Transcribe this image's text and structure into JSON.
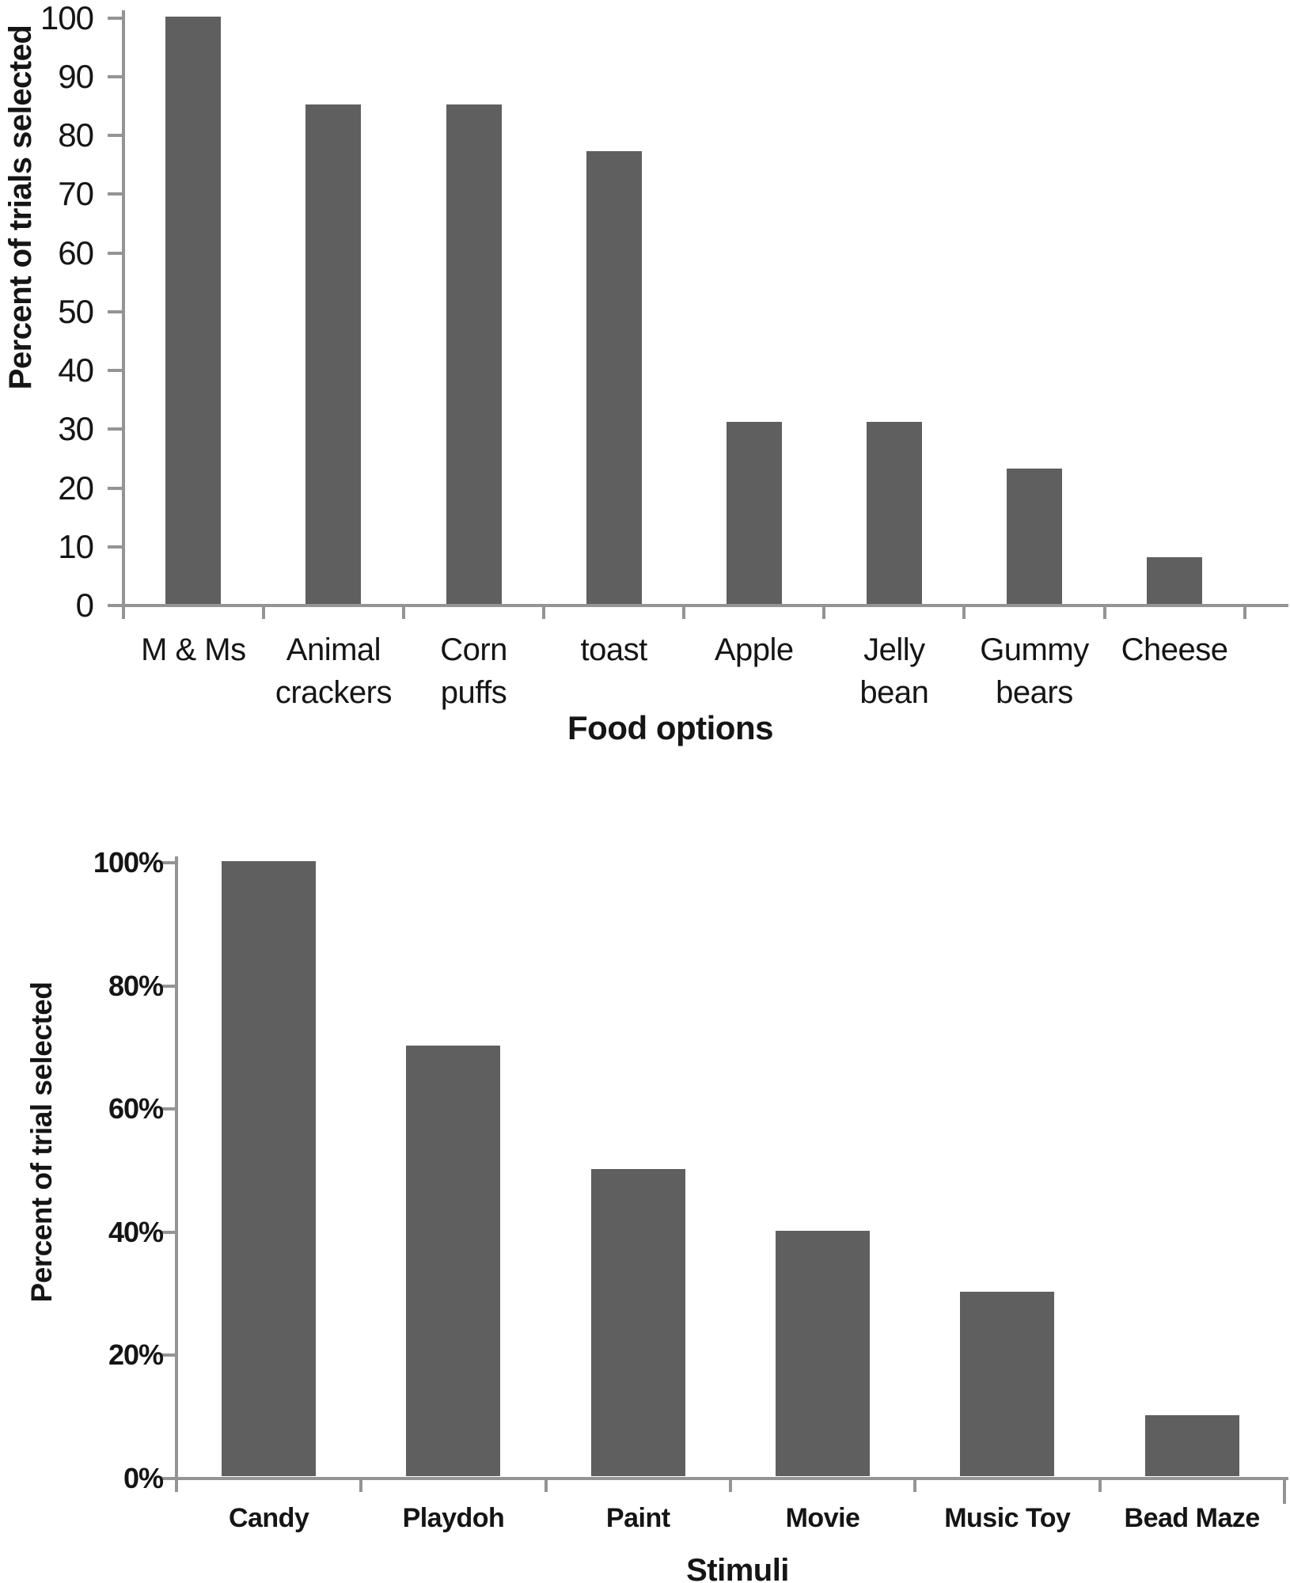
{
  "figure": {
    "background": "#ffffff",
    "bar_color": "#5f5f5f",
    "axis_color": "#949494",
    "text_color": "#151515"
  },
  "chart_data": [
    {
      "type": "bar",
      "title": "",
      "categories": [
        "M & Ms",
        "Animal crackers",
        "Corn puffs",
        "toast",
        "Apple",
        "Jelly bean",
        "Gummy bears",
        "Cheese"
      ],
      "values": [
        100,
        85,
        85,
        77,
        31,
        31,
        23,
        8
      ],
      "xlabel": "Food options",
      "ylabel": "Percent of trials selected",
      "ylim": [
        0,
        100
      ],
      "ytick_values": [
        0,
        10,
        20,
        30,
        40,
        50,
        60,
        70,
        80,
        90,
        100
      ],
      "ytick_labels": [
        "0",
        "10",
        "20",
        "30",
        "40",
        "50",
        "60",
        "70",
        "80",
        "90",
        "100"
      ],
      "grid": false,
      "legend": "none",
      "bar_color": "#5f5f5f"
    },
    {
      "type": "bar",
      "title": "",
      "categories": [
        "Candy",
        "Playdoh",
        "Paint",
        "Movie",
        "Music Toy",
        "Bead Maze"
      ],
      "values": [
        100,
        70,
        50,
        40,
        30,
        10
      ],
      "xlabel": "Stimuli",
      "ylabel": "Percent of trial selected",
      "ylim": [
        0,
        100
      ],
      "ytick_values": [
        0,
        20,
        40,
        60,
        80,
        100
      ],
      "ytick_labels": [
        "0%",
        "20%",
        "40%",
        "60%",
        "80%",
        "100%"
      ],
      "grid": false,
      "legend": "none",
      "bar_color": "#5f5f5f"
    }
  ]
}
